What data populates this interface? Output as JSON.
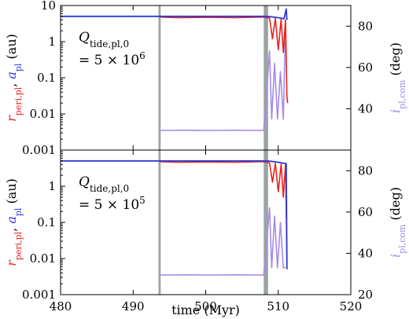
{
  "chart_data": [
    {
      "type": "line",
      "panel": "top",
      "xlim": [
        480,
        520
      ],
      "left_axis": {
        "label_parts": [
          {
            "text": "r",
            "sub": "peri,pl",
            "color": "#e8231f"
          },
          {
            "text": ", "
          },
          {
            "text": "a",
            "sub": "pl",
            "color": "#2b3bd6"
          },
          {
            "text": " (au)"
          }
        ],
        "scale": "log",
        "ylim": [
          0.001,
          10
        ],
        "ticks": [
          0.001,
          0.01,
          0.1,
          1,
          10
        ],
        "tick_labels": [
          "0.001",
          "0.01",
          "0.1",
          "1",
          "10"
        ]
      },
      "right_axis": {
        "label_parts": [
          {
            "text": "i",
            "sub": "pl,com",
            "color": "#a58be8"
          },
          {
            "text": " (deg)"
          }
        ],
        "ylim": [
          20,
          90
        ],
        "ticks": [
          40,
          60,
          80
        ],
        "tick_labels": [
          "40",
          "60",
          "80"
        ]
      },
      "annotation": {
        "line1": "Q",
        "line1_sub": "tide,pl,0",
        "line2": "= 5 × 10",
        "line2_sup": "6"
      },
      "vbands": [
        [
          493.5,
          493.8
        ],
        [
          508.0,
          508.6
        ]
      ],
      "series": [
        {
          "key": "a",
          "color": "#2b3bd6",
          "axis": "left",
          "x": [
            480,
            493.6,
            500,
            508.3,
            509.0,
            510.0,
            510.8,
            511.1,
            511.2
          ],
          "y": [
            5.0,
            5.0,
            5.0,
            5.0,
            4.9,
            4.6,
            4.3,
            8.0,
            4.0
          ]
        },
        {
          "key": "r_peri",
          "color": "#e8231f",
          "axis": "left",
          "x": [
            493.6,
            496,
            500,
            504,
            508.0,
            508.8,
            509.2,
            509.6,
            510.0,
            510.4,
            510.7,
            511.0,
            511.2,
            511.3
          ],
          "y": [
            4.8,
            4.6,
            4.7,
            4.6,
            4.8,
            4.5,
            1.2,
            4.4,
            0.6,
            4.2,
            0.5,
            4.0,
            0.03,
            0.02
          ]
        },
        {
          "key": "i_com",
          "color": "#a58be8",
          "axis": "right",
          "x": [
            493.6,
            497,
            500,
            504,
            508.0,
            508.8,
            509.1,
            509.5,
            509.9,
            510.3,
            510.7,
            511.0
          ],
          "y": [
            29.5,
            29.6,
            29.5,
            29.6,
            29.5,
            68,
            35,
            62,
            35,
            58,
            35,
            82
          ]
        }
      ]
    },
    {
      "type": "line",
      "panel": "bottom",
      "xlim": [
        480,
        520
      ],
      "xlabel": "time (Myr)",
      "xticks": [
        480,
        490,
        500,
        510,
        520
      ],
      "xtick_labels": [
        "480",
        "490",
        "500",
        "510",
        "520"
      ],
      "left_axis": {
        "label_parts": [
          {
            "text": "r",
            "sub": "peri,pl",
            "color": "#e8231f"
          },
          {
            "text": ", "
          },
          {
            "text": "a",
            "sub": "pl",
            "color": "#2b3bd6"
          },
          {
            "text": " (au)"
          }
        ],
        "scale": "log",
        "ylim": [
          0.001,
          10
        ],
        "ticks": [
          0.001,
          0.01,
          0.1,
          1
        ],
        "tick_labels": [
          "0.001",
          "0.01",
          "0.1",
          "1"
        ]
      },
      "right_axis": {
        "label_parts": [
          {
            "text": "i",
            "sub": "pl,com",
            "color": "#a58be8"
          },
          {
            "text": " (deg)"
          }
        ],
        "ylim": [
          20,
          90
        ],
        "ticks": [
          20,
          40,
          60,
          80
        ],
        "tick_labels": [
          "20",
          "40",
          "60",
          "80"
        ]
      },
      "annotation": {
        "line1": "Q",
        "line1_sub": "tide,pl,0",
        "line2": "= 5 × 10",
        "line2_sup": "5"
      },
      "vbands": [
        [
          493.5,
          493.8
        ],
        [
          508.0,
          508.6
        ]
      ],
      "series": [
        {
          "key": "a",
          "color": "#2b3bd6",
          "axis": "left",
          "x": [
            480,
            493.6,
            500,
            508.3,
            509.0,
            510.0,
            510.8,
            511.1,
            511.2
          ],
          "y": [
            5.0,
            5.0,
            5.0,
            5.0,
            4.9,
            4.6,
            4.3,
            4.2,
            0.005
          ]
        },
        {
          "key": "r_peri",
          "color": "#e8231f",
          "axis": "left",
          "x": [
            493.6,
            496,
            500,
            504,
            508.0,
            508.8,
            509.2,
            509.6,
            510.0,
            510.4,
            510.7,
            511.0,
            511.2
          ],
          "y": [
            4.8,
            4.6,
            4.7,
            4.6,
            4.8,
            4.4,
            1.3,
            4.3,
            0.7,
            4.1,
            0.5,
            4.0,
            0.01
          ]
        },
        {
          "key": "i_com",
          "color": "#a58be8",
          "axis": "right",
          "x": [
            493.6,
            497,
            500,
            504,
            508.0,
            508.8,
            509.1,
            509.5,
            509.9,
            510.3,
            510.7,
            511.0
          ],
          "y": [
            29.5,
            29.6,
            29.5,
            29.6,
            29.5,
            62,
            33,
            58,
            33,
            55,
            33,
            33
          ]
        }
      ]
    }
  ]
}
